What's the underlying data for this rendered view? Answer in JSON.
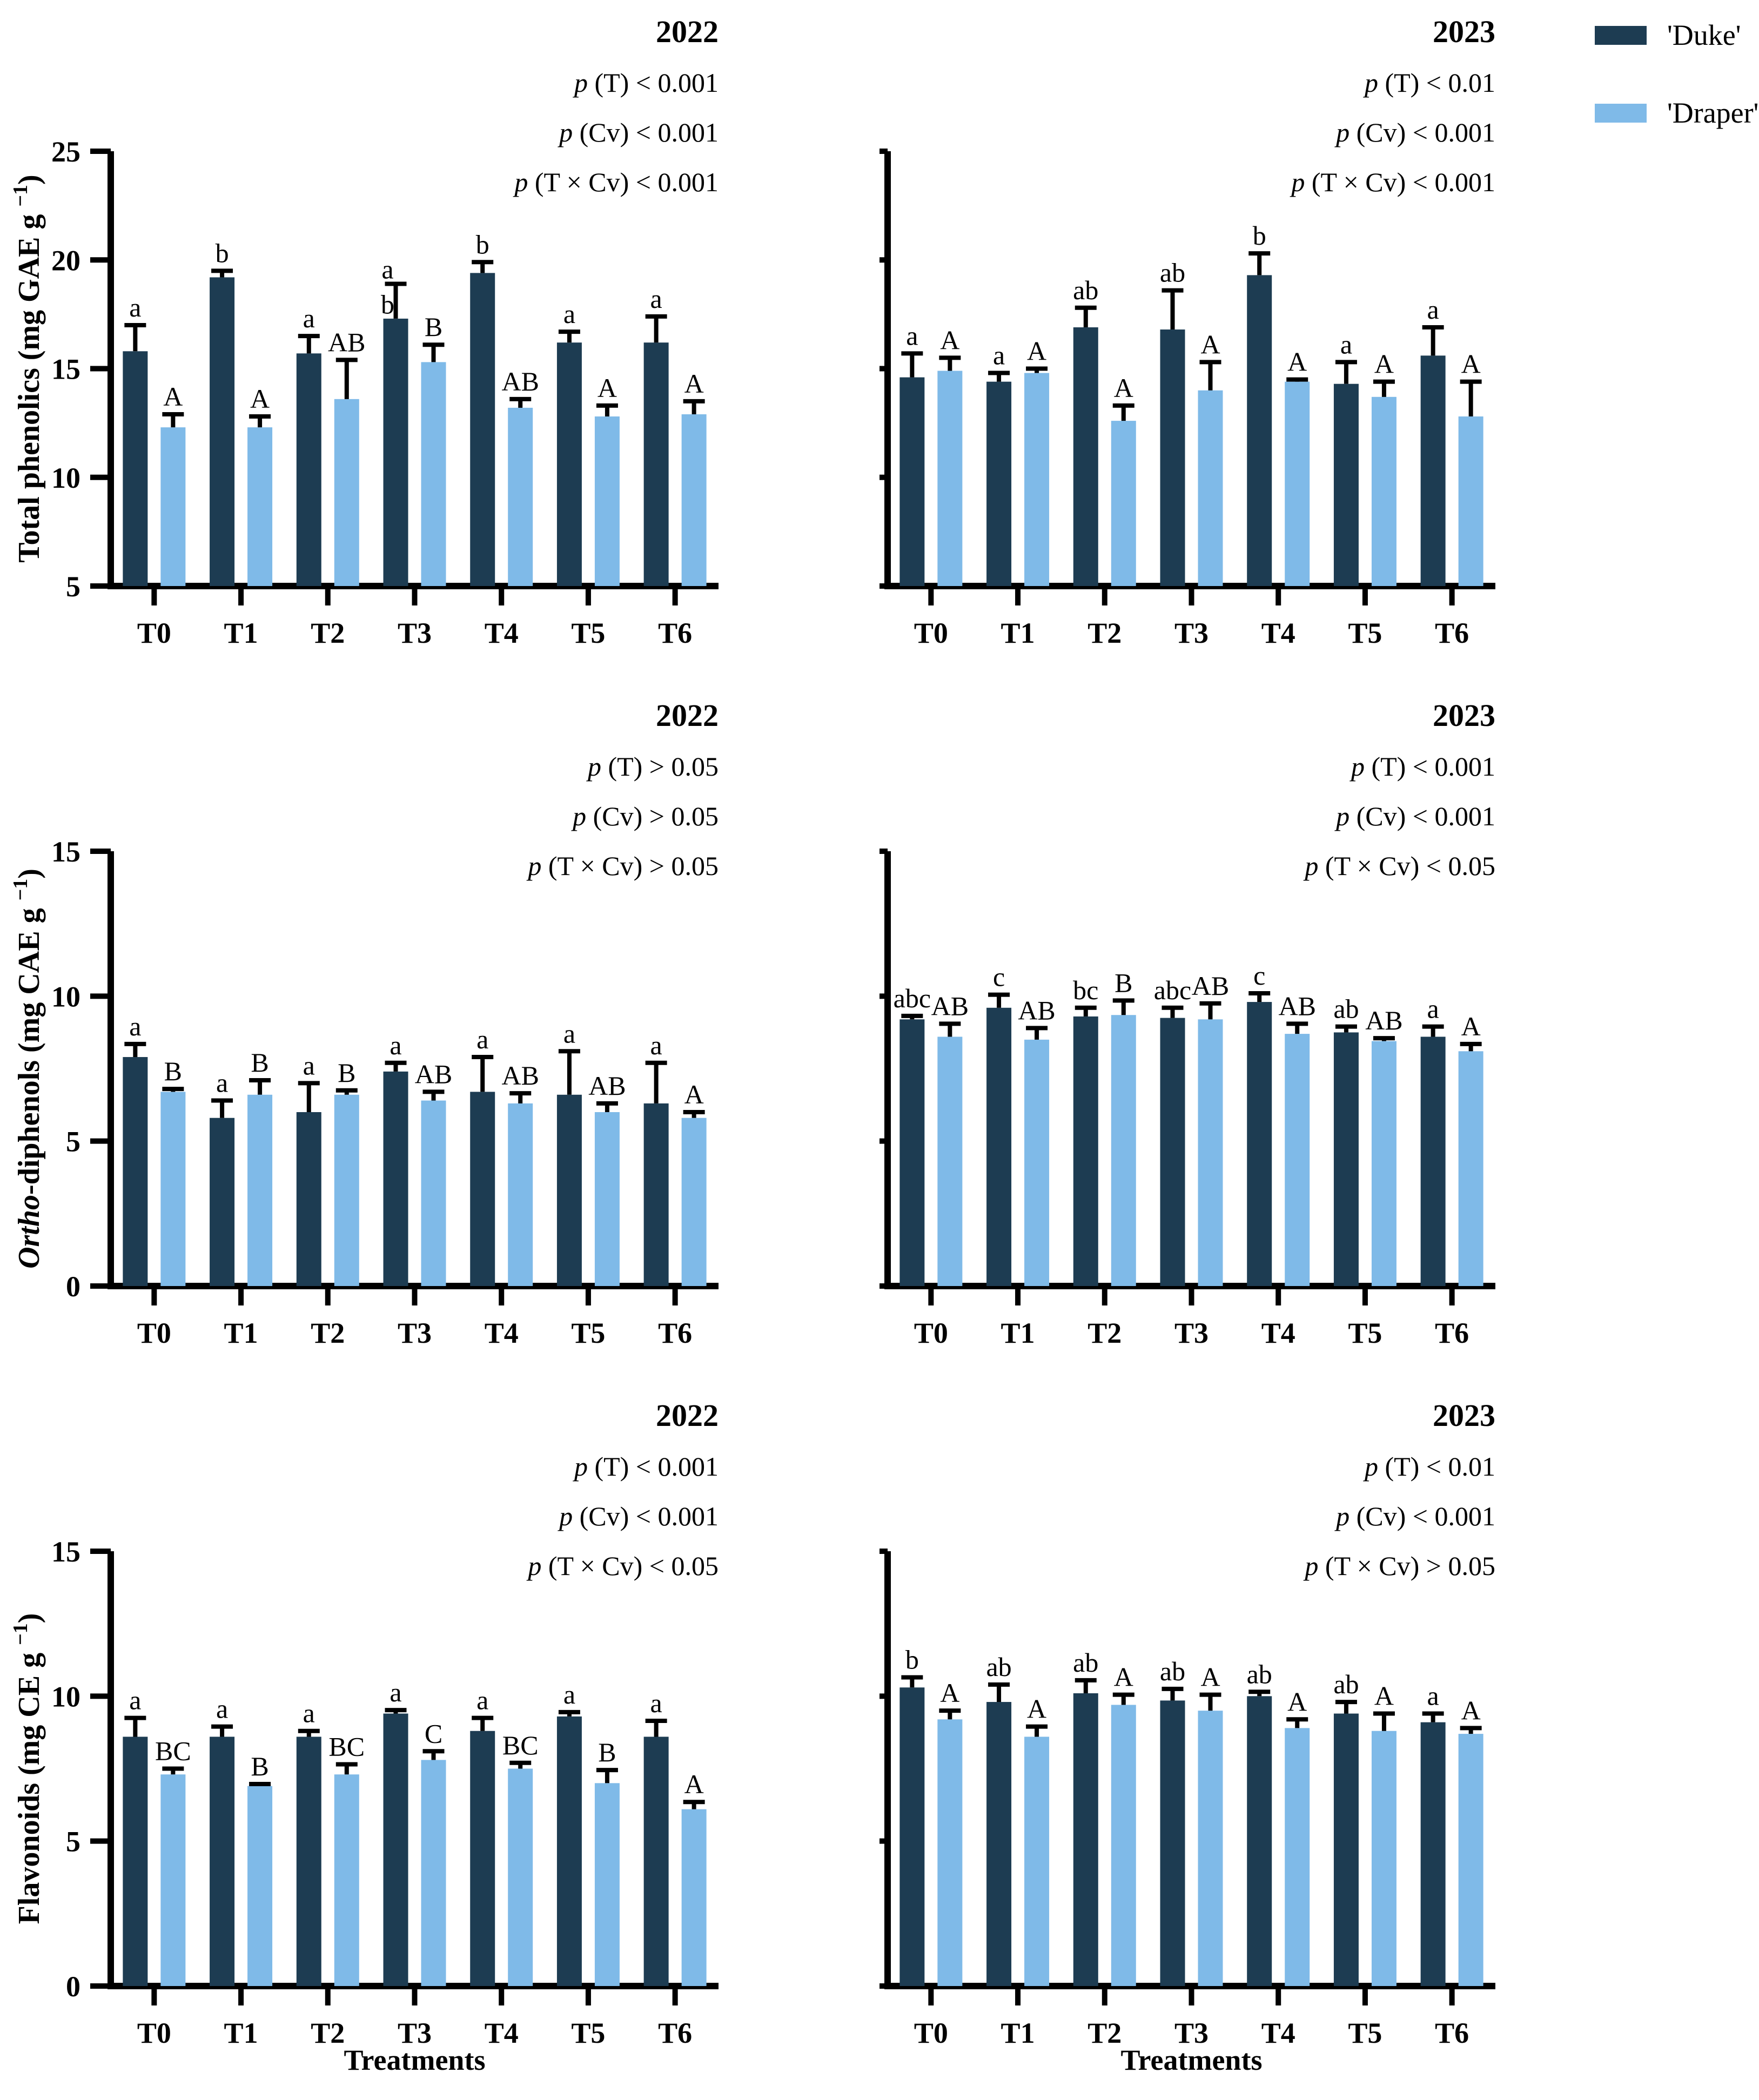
{
  "page": {
    "background": "#ffffff"
  },
  "legend": {
    "items": [
      {
        "key": "duke",
        "label": "'Duke'",
        "color": "#1d3c52"
      },
      {
        "key": "draper",
        "label": "'Draper'",
        "color": "#7fbae8"
      }
    ]
  },
  "x_axis": {
    "categories": [
      "T0",
      "T1",
      "T2",
      "T3",
      "T4",
      "T5",
      "T6"
    ],
    "label": "Treatments"
  },
  "chart_data": [
    {
      "type": "bar",
      "id": "total-phenolics-2022",
      "title": "2022",
      "p_values": [
        "p (T) < 0.001",
        "p (Cv) < 0.001",
        "p (T × Cv) < 0.001"
      ],
      "ylabel": {
        "italic": "",
        "text": "Total phenolics (mg GAE g ",
        "sup": "−1",
        "post": ")"
      },
      "xlabel": "",
      "ylim": [
        5,
        25
      ],
      "yticks": [
        5,
        10,
        15,
        20,
        25
      ],
      "show_ytick_labels": true,
      "categories": [
        "T0",
        "T1",
        "T2",
        "T3",
        "T4",
        "T5",
        "T6"
      ],
      "series": [
        {
          "name": "'Duke'",
          "color": "#1d3c52",
          "values": [
            15.8,
            19.2,
            15.7,
            17.3,
            19.4,
            16.2,
            16.2
          ],
          "errors": [
            1.2,
            0.3,
            0.8,
            1.6,
            0.5,
            0.5,
            1.2
          ],
          "letters": [
            "a",
            "b",
            "a",
            "a\nb",
            "b",
            "a",
            "a"
          ]
        },
        {
          "name": "'Draper'",
          "color": "#7fbae8",
          "values": [
            12.3,
            12.3,
            13.6,
            15.3,
            13.2,
            12.8,
            12.9
          ],
          "errors": [
            0.6,
            0.5,
            1.8,
            0.8,
            0.4,
            0.5,
            0.6
          ],
          "letters": [
            "A",
            "A",
            "AB",
            "B",
            "AB",
            "A",
            "A"
          ]
        }
      ]
    },
    {
      "type": "bar",
      "id": "total-phenolics-2023",
      "title": "2023",
      "p_values": [
        "p (T) < 0.01",
        "p (Cv) < 0.001",
        "p (T × Cv) < 0.001"
      ],
      "ylabel": null,
      "xlabel": "",
      "ylim": [
        5,
        25
      ],
      "yticks": [
        5,
        10,
        15,
        20,
        25
      ],
      "show_ytick_labels": false,
      "categories": [
        "T0",
        "T1",
        "T2",
        "T3",
        "T4",
        "T5",
        "T6"
      ],
      "series": [
        {
          "name": "'Duke'",
          "color": "#1d3c52",
          "values": [
            14.6,
            14.4,
            16.9,
            16.8,
            19.3,
            14.3,
            15.6
          ],
          "errors": [
            1.1,
            0.4,
            0.9,
            1.8,
            1.0,
            1.0,
            1.3
          ],
          "letters": [
            "a",
            "a",
            "ab",
            "ab",
            "b",
            "a",
            "a"
          ]
        },
        {
          "name": "'Draper'",
          "color": "#7fbae8",
          "values": [
            14.9,
            14.8,
            12.6,
            14.0,
            14.4,
            13.7,
            12.8
          ],
          "errors": [
            0.6,
            0.2,
            0.7,
            1.3,
            0.1,
            0.7,
            1.6
          ],
          "letters": [
            "A",
            "A",
            "A",
            "A",
            "A",
            "A",
            "A"
          ]
        }
      ]
    },
    {
      "type": "bar",
      "id": "ortho-diphenols-2022",
      "title": "2022",
      "p_values": [
        "p (T) > 0.05",
        "p (Cv) > 0.05",
        "p (T × Cv) > 0.05"
      ],
      "ylabel": {
        "italic": "Ortho",
        "text": "-diphenols (mg CAE g ",
        "sup": "−1",
        "post": ")"
      },
      "xlabel": "",
      "ylim": [
        0,
        15
      ],
      "yticks": [
        0,
        5,
        10,
        15
      ],
      "show_ytick_labels": true,
      "categories": [
        "T0",
        "T1",
        "T2",
        "T3",
        "T4",
        "T5",
        "T6"
      ],
      "series": [
        {
          "name": "'Duke'",
          "color": "#1d3c52",
          "values": [
            7.9,
            5.8,
            6.0,
            7.4,
            6.7,
            6.6,
            6.3
          ],
          "errors": [
            0.45,
            0.6,
            1.0,
            0.3,
            1.2,
            1.5,
            1.4
          ],
          "letters": [
            "a",
            "a",
            "a",
            "a",
            "a",
            "a",
            "a"
          ]
        },
        {
          "name": "'Draper'",
          "color": "#7fbae8",
          "values": [
            6.7,
            6.6,
            6.6,
            6.4,
            6.3,
            6.0,
            5.8
          ],
          "errors": [
            0.1,
            0.5,
            0.15,
            0.3,
            0.35,
            0.3,
            0.2
          ],
          "letters": [
            "B",
            "B",
            "B",
            "AB",
            "AB",
            "AB",
            "A"
          ]
        }
      ]
    },
    {
      "type": "bar",
      "id": "ortho-diphenols-2023",
      "title": "2023",
      "p_values": [
        "p (T) < 0.001",
        "p (Cv) < 0.001",
        "p (T × Cv) < 0.05"
      ],
      "ylabel": null,
      "xlabel": "",
      "ylim": [
        0,
        15
      ],
      "yticks": [
        0,
        5,
        10,
        15
      ],
      "show_ytick_labels": false,
      "categories": [
        "T0",
        "T1",
        "T2",
        "T3",
        "T4",
        "T5",
        "T6"
      ],
      "series": [
        {
          "name": "'Duke'",
          "color": "#1d3c52",
          "values": [
            9.2,
            9.6,
            9.3,
            9.25,
            9.8,
            8.75,
            8.6
          ],
          "errors": [
            0.12,
            0.45,
            0.3,
            0.35,
            0.3,
            0.2,
            0.35
          ],
          "letters": [
            "abc",
            "c",
            "bc",
            "abc",
            "c",
            "ab",
            "a"
          ]
        },
        {
          "name": "'Draper'",
          "color": "#7fbae8",
          "values": [
            8.6,
            8.5,
            9.35,
            9.2,
            8.7,
            8.45,
            8.1
          ],
          "errors": [
            0.45,
            0.4,
            0.5,
            0.55,
            0.35,
            0.1,
            0.25
          ],
          "letters": [
            "AB",
            "AB",
            "B",
            "AB",
            "AB",
            "AB",
            "A"
          ]
        }
      ]
    },
    {
      "type": "bar",
      "id": "flavonoids-2022",
      "title": "2022",
      "p_values": [
        "p (T) < 0.001",
        "p (Cv) < 0.001",
        "p (T × Cv) < 0.05"
      ],
      "ylabel": {
        "italic": "",
        "text": "Flavonoids (mg CE g ",
        "sup": "−1",
        "post": ")"
      },
      "xlabel": "Treatments",
      "ylim": [
        0,
        15
      ],
      "yticks": [
        0,
        5,
        10,
        15
      ],
      "show_ytick_labels": true,
      "categories": [
        "T0",
        "T1",
        "T2",
        "T3",
        "T4",
        "T5",
        "T6"
      ],
      "series": [
        {
          "name": "'Duke'",
          "color": "#1d3c52",
          "values": [
            8.6,
            8.6,
            8.6,
            9.4,
            8.8,
            9.3,
            8.6
          ],
          "errors": [
            0.65,
            0.35,
            0.2,
            0.12,
            0.45,
            0.15,
            0.55
          ],
          "letters": [
            "a",
            "a",
            "a",
            "a",
            "a",
            "a",
            "a"
          ]
        },
        {
          "name": "'Draper'",
          "color": "#7fbae8",
          "values": [
            7.3,
            6.9,
            7.3,
            7.8,
            7.5,
            7.0,
            6.1
          ],
          "errors": [
            0.2,
            0.07,
            0.35,
            0.3,
            0.2,
            0.45,
            0.25
          ],
          "letters": [
            "BC",
            "B",
            "BC",
            "C",
            "BC",
            "B",
            "A"
          ]
        }
      ]
    },
    {
      "type": "bar",
      "id": "flavonoids-2023",
      "title": "2023",
      "p_values": [
        "p (T) < 0.01",
        "p (Cv) < 0.001",
        "p (T × Cv) > 0.05"
      ],
      "ylabel": null,
      "xlabel": "Treatments",
      "ylim": [
        0,
        15
      ],
      "yticks": [
        0,
        5,
        10,
        15
      ],
      "show_ytick_labels": false,
      "categories": [
        "T0",
        "T1",
        "T2",
        "T3",
        "T4",
        "T5",
        "T6"
      ],
      "series": [
        {
          "name": "'Duke'",
          "color": "#1d3c52",
          "values": [
            10.3,
            9.8,
            10.1,
            9.85,
            10.0,
            9.4,
            9.1
          ],
          "errors": [
            0.35,
            0.6,
            0.45,
            0.4,
            0.15,
            0.4,
            0.3
          ],
          "letters": [
            "b",
            "ab",
            "ab",
            "ab",
            "ab",
            "ab",
            "a"
          ]
        },
        {
          "name": "'Draper'",
          "color": "#7fbae8",
          "values": [
            9.2,
            8.6,
            9.7,
            9.5,
            8.9,
            8.8,
            8.7
          ],
          "errors": [
            0.3,
            0.35,
            0.35,
            0.55,
            0.3,
            0.6,
            0.2
          ],
          "letters": [
            "A",
            "A",
            "A",
            "A",
            "A",
            "A",
            "A"
          ]
        }
      ]
    }
  ]
}
